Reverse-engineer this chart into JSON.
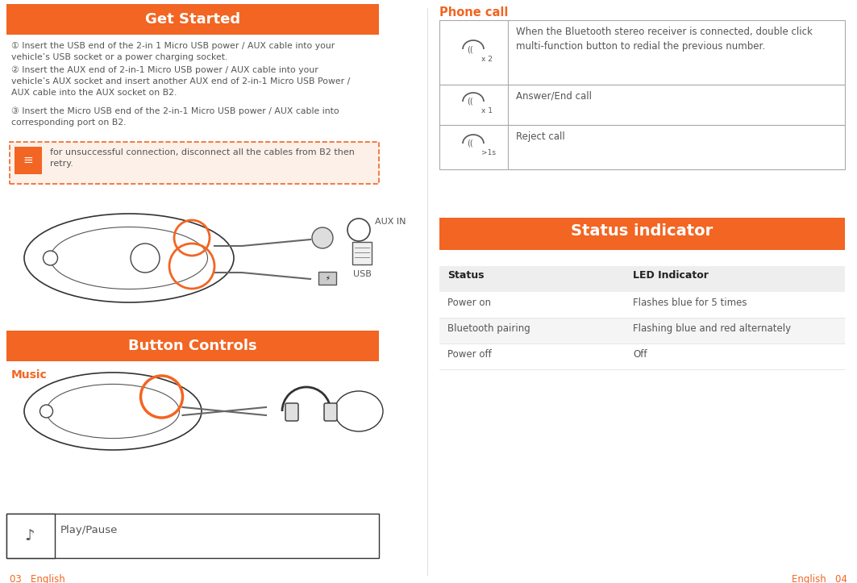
{
  "bg_color": "#ffffff",
  "orange_color": "#f26522",
  "light_gray": "#f0f0f0",
  "gray_border": "#cccccc",
  "dark_gray_text": "#555555",
  "black_text": "#222222",
  "note_bg": "#fdf0e8",
  "left_panel": {
    "get_started_title": "Get Started",
    "step1": "① Insert the USB end of the 2-in 1 Micro USB power / AUX cable into your\nvehicle’s USB socket or a power charging socket.",
    "step2": "② Insert the AUX end of 2-in-1 Micro USB power / AUX cable into your\nvehicle’s AUX socket and insert another AUX end of 2-in-1 Micro USB Power /\nAUX cable into the AUX socket on B2.",
    "step3": "③ Insert the Micro USB end of the 2-in-1 Micro USB power / AUX cable into\ncorresponding port on B2.",
    "note": "for unsuccessful connection, disconnect all the cables from B2 then\nretry.",
    "aux_in_label": "AUX IN",
    "usb_label": "USB",
    "button_controls_title": "Button Controls",
    "music_label": "Music",
    "play_pause_text": "Play/Pause"
  },
  "right_panel": {
    "phone_call_label": "Phone call",
    "phone_rows": [
      {
        "icon_text": "x 2",
        "description": "When the Bluetooth stereo receiver is connected, double click\nmulti-function button to redial the previous number."
      },
      {
        "icon_text": "x 1",
        "description": "Answer/End call"
      },
      {
        "icon_text": ">1s",
        "description": "Reject call"
      }
    ],
    "status_title": "Status indicator",
    "status_headers": [
      "Status",
      "LED Indicator"
    ],
    "status_rows": [
      [
        "Power on",
        "Flashes blue for 5 times"
      ],
      [
        "Bluetooth pairing",
        "Flashing blue and red alternately"
      ],
      [
        "Power off",
        "Off"
      ]
    ]
  },
  "footer_left": "03   English",
  "footer_right": "English   04"
}
